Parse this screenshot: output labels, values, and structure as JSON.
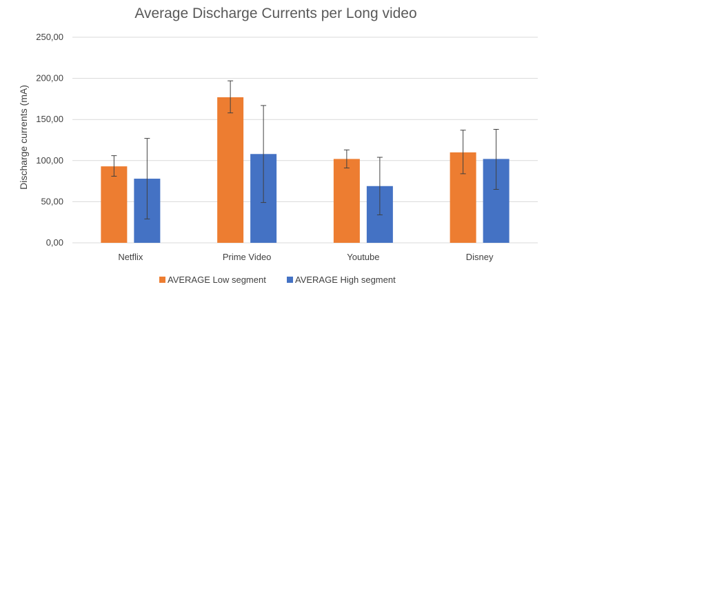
{
  "chart_data": {
    "type": "bar",
    "title": "Average Discharge Currents per Long video",
    "xlabel": "",
    "ylabel": "Discharge currents (mA)",
    "ylim": [
      0,
      250
    ],
    "y_ticks": [
      "0,00",
      "50,00",
      "100,00",
      "150,00",
      "200,00",
      "250,00"
    ],
    "y_tick_values": [
      0,
      50,
      100,
      150,
      200,
      250
    ],
    "categories": [
      "Netflix",
      "Prime Video",
      "Youtube",
      "Disney"
    ],
    "series": [
      {
        "name": "AVERAGE Low segment",
        "color": "#ed7d31",
        "values": [
          93,
          177,
          102,
          110
        ],
        "error_low": [
          81,
          158,
          91,
          84
        ],
        "error_high": [
          106,
          197,
          113,
          137
        ]
      },
      {
        "name": "AVERAGE High segment",
        "color": "#4472c4",
        "values": [
          78,
          108,
          69,
          102
        ],
        "error_low": [
          29,
          49,
          34,
          65
        ],
        "error_high": [
          127,
          167,
          104,
          138
        ]
      }
    ],
    "grid": true,
    "legend_position": "bottom"
  }
}
